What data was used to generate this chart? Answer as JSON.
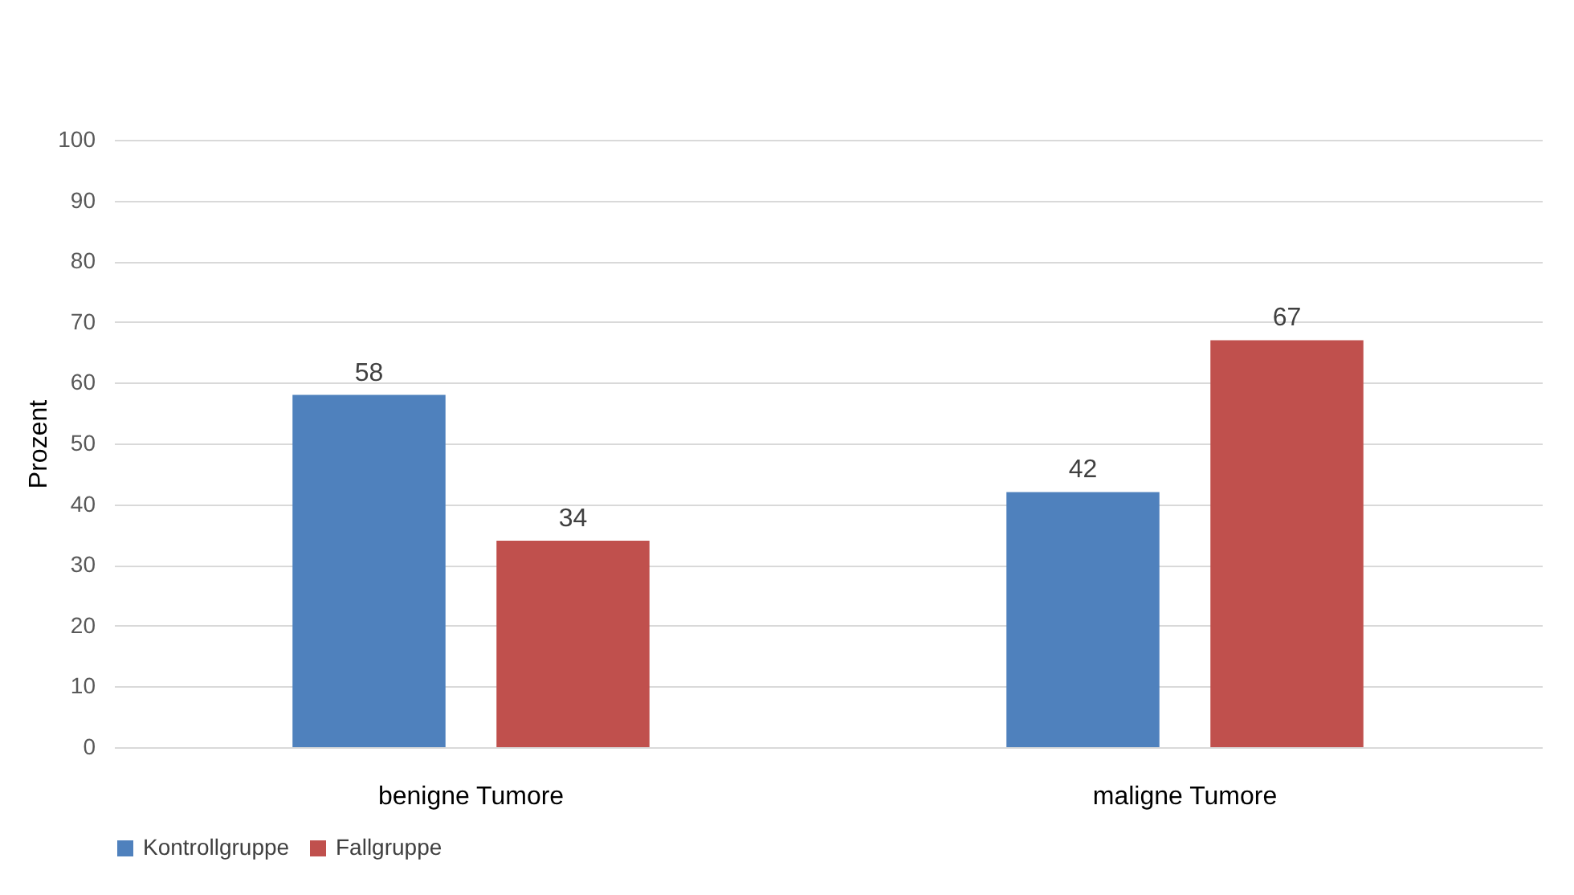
{
  "chart_data": {
    "type": "bar",
    "categories": [
      "benigne Tumore",
      "maligne Tumore"
    ],
    "series": [
      {
        "name": "Kontrollgruppe",
        "color": "#4f81bd",
        "values": [
          58,
          42
        ]
      },
      {
        "name": "Fallgruppe",
        "color": "#c0504d",
        "values": [
          34,
          67
        ]
      }
    ],
    "ylabel": "Prozent",
    "ylim": [
      0,
      100
    ],
    "yticks": [
      0,
      10,
      20,
      30,
      40,
      50,
      60,
      70,
      80,
      90,
      100
    ],
    "grid": "y",
    "legend": "bottom",
    "data_labels": true
  }
}
